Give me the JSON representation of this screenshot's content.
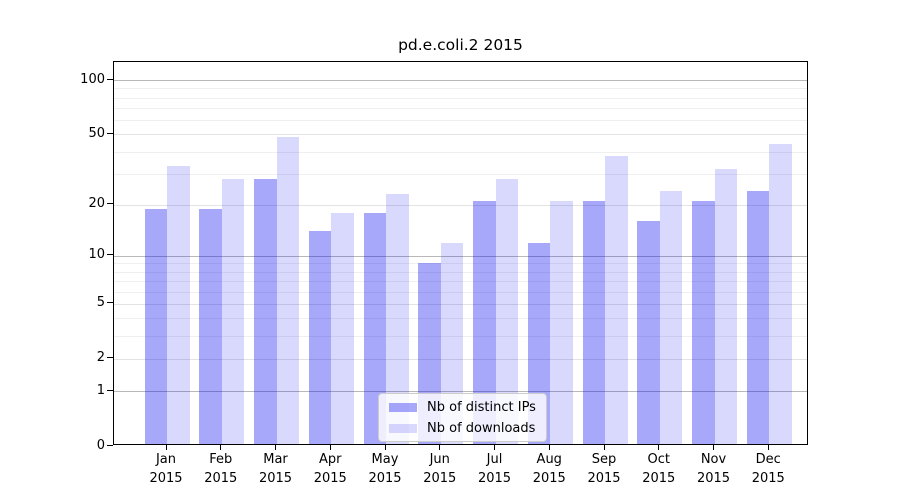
{
  "chart_data": {
    "type": "bar",
    "title": "pd.e.coli.2 2015",
    "categories": [
      "Jan 2015",
      "Feb 2015",
      "Mar 2015",
      "Apr 2015",
      "May 2015",
      "Jun 2015",
      "Jul 2015",
      "Aug 2015",
      "Sep 2015",
      "Oct 2015",
      "Nov 2015",
      "Dec 2015"
    ],
    "series": [
      {
        "name": "Nb of distinct IPs",
        "color": "rgba(0,0,240,0.34)",
        "color_hex_on_white": "#a8a8fa",
        "values": [
          19,
          19,
          28,
          14,
          18,
          9,
          21,
          12,
          21,
          16,
          21,
          24
        ]
      },
      {
        "name": "Nb of downloads",
        "color": "rgba(0,0,240,0.15)",
        "color_hex_on_white": "#d9d9fd",
        "values": [
          33,
          28,
          48,
          18,
          23,
          12,
          28,
          21,
          38,
          24,
          32,
          44
        ]
      }
    ],
    "xlabel": "",
    "ylabel": "",
    "yscale": "log1p",
    "ylim": [
      0,
      126
    ],
    "y_ticks": [
      0,
      1,
      2,
      5,
      10,
      20,
      50,
      100
    ],
    "y_decade_ticks": [
      1,
      10,
      100
    ],
    "y_minor_gridlines": [
      3,
      4,
      6,
      7,
      8,
      9,
      30,
      40,
      60,
      70,
      80,
      90
    ],
    "grid": "horizontal",
    "legend_position": "bottom-center"
  }
}
